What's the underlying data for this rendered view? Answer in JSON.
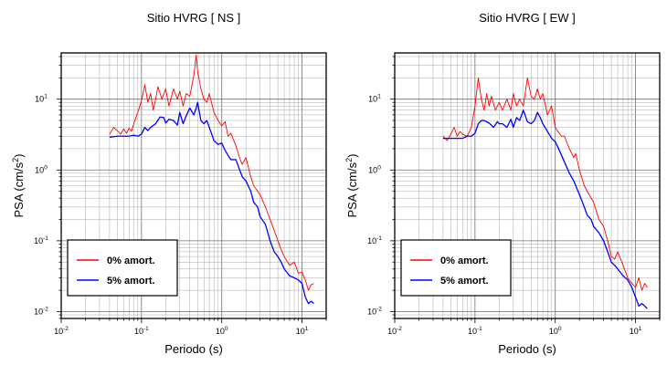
{
  "chart_data": [
    {
      "type": "line",
      "title": "Sitio HVRG [ NS ]",
      "xlabel": "Periodo (s)",
      "ylabel_main": "PSA (cm/s",
      "ylabel_sup": "2",
      "ylabel_end": ")",
      "xscale": "log",
      "yscale": "log",
      "xlim": [
        0.01,
        20
      ],
      "ylim": [
        0.008,
        45
      ],
      "grid": true,
      "legend_position": "bottom-left",
      "x_ticks": [
        {
          "base": "10",
          "exp": "-2",
          "value": 0.01
        },
        {
          "base": "10",
          "exp": "-1",
          "value": 0.1
        },
        {
          "base": "10",
          "exp": "0",
          "value": 1
        },
        {
          "base": "10",
          "exp": "1",
          "value": 10
        }
      ],
      "y_ticks": [
        {
          "base": "10",
          "exp": "-2",
          "value": 0.01
        },
        {
          "base": "10",
          "exp": "-1",
          "value": 0.1
        },
        {
          "base": "10",
          "exp": "0",
          "value": 1
        },
        {
          "base": "10",
          "exp": "1",
          "value": 10
        }
      ],
      "series": [
        {
          "name": "0% amort.",
          "color": "#ff0000",
          "x": [
            0.04,
            0.045,
            0.05,
            0.055,
            0.06,
            0.065,
            0.07,
            0.075,
            0.08,
            0.09,
            0.1,
            0.11,
            0.12,
            0.13,
            0.14,
            0.15,
            0.16,
            0.18,
            0.2,
            0.22,
            0.25,
            0.28,
            0.3,
            0.33,
            0.36,
            0.4,
            0.45,
            0.48,
            0.5,
            0.55,
            0.6,
            0.65,
            0.7,
            0.8,
            0.9,
            1.0,
            1.1,
            1.2,
            1.3,
            1.5,
            1.7,
            1.8,
            2.0,
            2.3,
            2.5,
            2.8,
            3.0,
            3.5,
            4.0,
            4.5,
            5.0,
            5.5,
            6.0,
            7.0,
            8.0,
            9.0,
            10.0,
            11.0,
            12.0,
            13.0,
            14.0
          ],
          "y": [
            3.2,
            4.0,
            3.6,
            3.2,
            3.8,
            3.3,
            3.9,
            3.5,
            4.5,
            6.5,
            9.5,
            16.0,
            9.0,
            12.0,
            7.0,
            10.0,
            15.0,
            10.0,
            14.0,
            8.0,
            14.0,
            10.0,
            13.0,
            8.0,
            12.0,
            11.0,
            22.0,
            42.0,
            25.0,
            14.0,
            10.0,
            9.0,
            12.0,
            6.5,
            5.0,
            4.2,
            4.8,
            3.0,
            3.3,
            2.2,
            1.4,
            1.2,
            1.5,
            0.8,
            0.6,
            0.5,
            0.45,
            0.3,
            0.2,
            0.14,
            0.1,
            0.075,
            0.06,
            0.045,
            0.05,
            0.035,
            0.036,
            0.028,
            0.02,
            0.024,
            0.025
          ]
        },
        {
          "name": "5% amort.",
          "color": "#0000ff",
          "x": [
            0.04,
            0.05,
            0.06,
            0.07,
            0.08,
            0.09,
            0.1,
            0.11,
            0.12,
            0.13,
            0.15,
            0.17,
            0.19,
            0.2,
            0.22,
            0.25,
            0.28,
            0.3,
            0.33,
            0.36,
            0.4,
            0.43,
            0.45,
            0.48,
            0.5,
            0.55,
            0.6,
            0.65,
            0.7,
            0.8,
            0.9,
            1.0,
            1.1,
            1.2,
            1.3,
            1.5,
            1.7,
            1.8,
            2.0,
            2.3,
            2.5,
            2.8,
            3.0,
            3.5,
            4.0,
            4.5,
            5.0,
            5.5,
            6.0,
            7.0,
            8.0,
            9.0,
            10.0,
            11.0,
            12.0,
            13.0,
            14.0
          ],
          "y": [
            2.9,
            3.0,
            3.0,
            3.0,
            3.1,
            3.0,
            3.2,
            4.0,
            3.6,
            4.0,
            4.5,
            5.6,
            5.5,
            4.6,
            5.2,
            5.0,
            4.3,
            6.5,
            4.5,
            5.8,
            7.5,
            6.5,
            6.0,
            7.5,
            9.0,
            5.0,
            4.5,
            5.0,
            4.0,
            2.6,
            2.3,
            2.4,
            1.9,
            1.6,
            1.4,
            1.4,
            0.95,
            0.8,
            0.7,
            0.5,
            0.35,
            0.3,
            0.22,
            0.17,
            0.1,
            0.07,
            0.06,
            0.05,
            0.04,
            0.032,
            0.03,
            0.028,
            0.025,
            0.016,
            0.013,
            0.014,
            0.013
          ]
        }
      ]
    },
    {
      "type": "line",
      "title": "Sitio HVRG [ EW ]",
      "xlabel": "Periodo (s)",
      "ylabel_main": "PSA (cm/s",
      "ylabel_sup": "2",
      "ylabel_end": ")",
      "xscale": "log",
      "yscale": "log",
      "xlim": [
        0.01,
        20
      ],
      "ylim": [
        0.008,
        45
      ],
      "grid": true,
      "legend_position": "bottom-left",
      "x_ticks": [
        {
          "base": "10",
          "exp": "-2",
          "value": 0.01
        },
        {
          "base": "10",
          "exp": "-1",
          "value": 0.1
        },
        {
          "base": "10",
          "exp": "0",
          "value": 1
        },
        {
          "base": "10",
          "exp": "1",
          "value": 10
        }
      ],
      "y_ticks": [
        {
          "base": "10",
          "exp": "-2",
          "value": 0.01
        },
        {
          "base": "10",
          "exp": "-1",
          "value": 0.1
        },
        {
          "base": "10",
          "exp": "0",
          "value": 1
        },
        {
          "base": "10",
          "exp": "1",
          "value": 10
        }
      ],
      "series": [
        {
          "name": "0% amort.",
          "color": "#ff0000",
          "x": [
            0.04,
            0.045,
            0.05,
            0.055,
            0.06,
            0.065,
            0.07,
            0.08,
            0.09,
            0.1,
            0.11,
            0.12,
            0.13,
            0.14,
            0.15,
            0.16,
            0.18,
            0.2,
            0.22,
            0.25,
            0.28,
            0.3,
            0.33,
            0.36,
            0.4,
            0.45,
            0.5,
            0.55,
            0.6,
            0.65,
            0.7,
            0.8,
            0.9,
            1.0,
            1.1,
            1.2,
            1.3,
            1.5,
            1.7,
            1.8,
            2.0,
            2.3,
            2.5,
            2.8,
            3.0,
            3.5,
            4.0,
            4.5,
            5.0,
            5.5,
            6.0,
            7.0,
            8.0,
            9.0,
            10.0,
            11.0,
            12.0,
            13.0,
            14.0
          ],
          "y": [
            3.0,
            2.6,
            3.2,
            4.0,
            3.0,
            3.5,
            3.2,
            3.0,
            4.0,
            8.0,
            20.0,
            10.0,
            7.0,
            12.0,
            8.0,
            11.0,
            7.0,
            9.0,
            7.0,
            10.0,
            7.0,
            12.0,
            8.0,
            10.0,
            8.0,
            20.0,
            11.0,
            10.0,
            14.0,
            10.0,
            12.0,
            6.0,
            8.0,
            4.0,
            3.4,
            3.0,
            3.0,
            2.0,
            1.5,
            1.7,
            1.0,
            0.6,
            0.5,
            0.4,
            0.35,
            0.2,
            0.16,
            0.1,
            0.06,
            0.055,
            0.07,
            0.045,
            0.03,
            0.025,
            0.022,
            0.03,
            0.02,
            0.025,
            0.022
          ]
        },
        {
          "name": "5% amort.",
          "color": "#0000ff",
          "x": [
            0.04,
            0.05,
            0.06,
            0.07,
            0.08,
            0.09,
            0.1,
            0.11,
            0.12,
            0.13,
            0.15,
            0.17,
            0.19,
            0.2,
            0.22,
            0.25,
            0.28,
            0.3,
            0.33,
            0.36,
            0.4,
            0.45,
            0.5,
            0.55,
            0.6,
            0.65,
            0.7,
            0.8,
            0.9,
            1.0,
            1.1,
            1.2,
            1.3,
            1.5,
            1.7,
            1.8,
            2.0,
            2.3,
            2.5,
            2.8,
            3.0,
            3.5,
            4.0,
            4.5,
            5.0,
            5.5,
            6.0,
            7.0,
            8.0,
            9.0,
            10.0,
            11.0,
            12.0,
            13.0,
            14.0
          ],
          "y": [
            2.8,
            2.8,
            2.8,
            2.8,
            3.0,
            3.0,
            3.3,
            4.5,
            5.0,
            5.0,
            4.6,
            4.0,
            4.8,
            4.5,
            4.5,
            4.0,
            5.2,
            4.0,
            5.5,
            5.0,
            7.0,
            4.8,
            4.5,
            5.0,
            6.5,
            5.5,
            4.5,
            3.5,
            2.8,
            2.5,
            2.0,
            1.6,
            1.3,
            0.9,
            0.7,
            0.6,
            0.45,
            0.3,
            0.23,
            0.2,
            0.16,
            0.13,
            0.1,
            0.07,
            0.05,
            0.045,
            0.04,
            0.032,
            0.028,
            0.022,
            0.016,
            0.012,
            0.013,
            0.012,
            0.011
          ]
        }
      ]
    }
  ]
}
